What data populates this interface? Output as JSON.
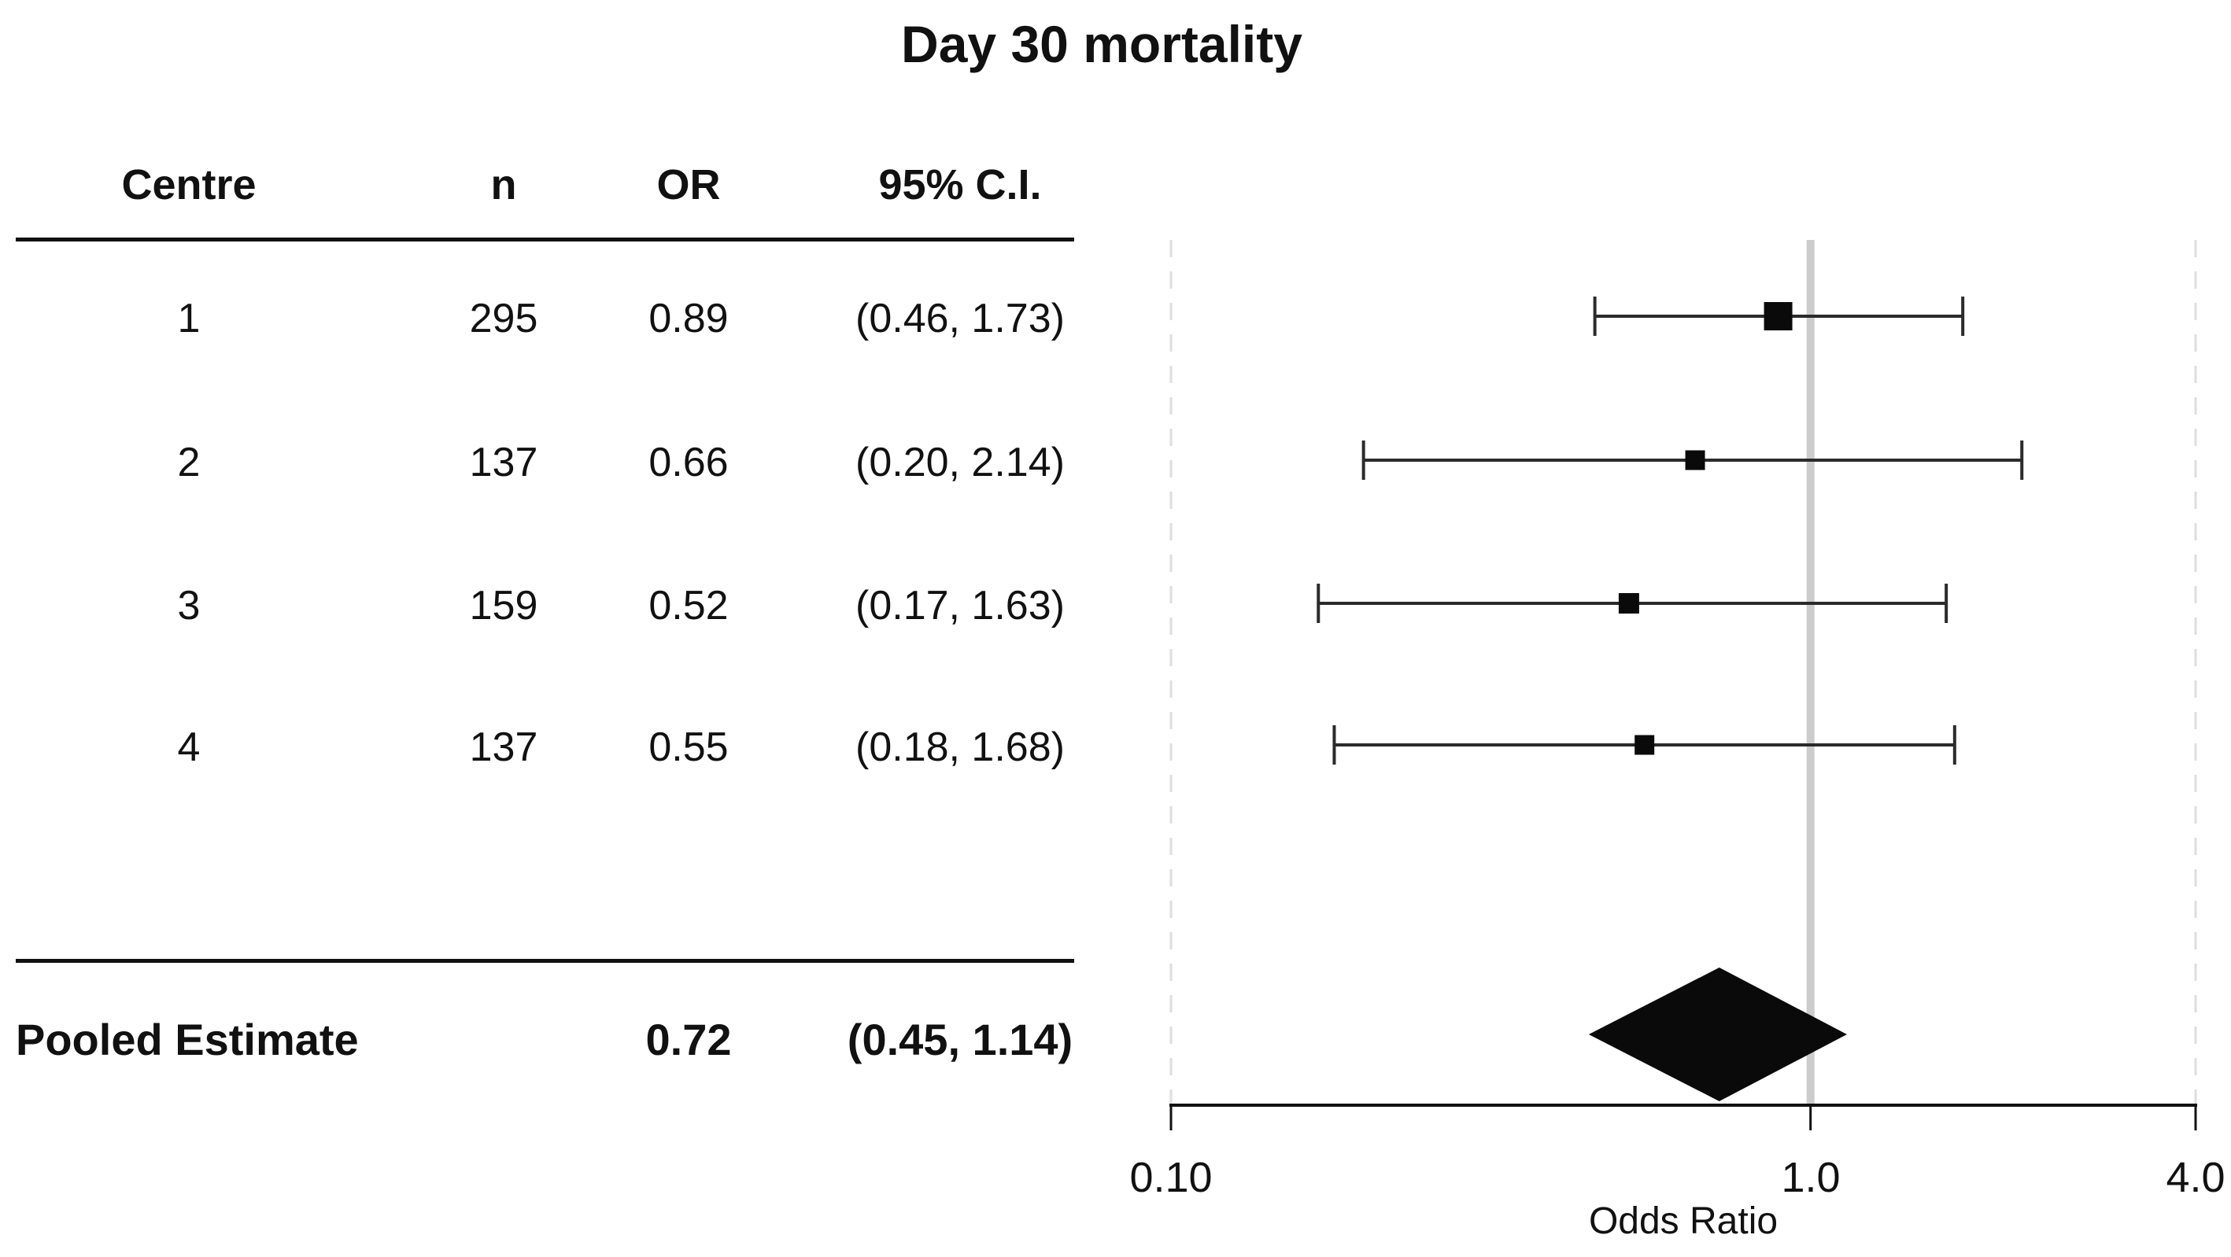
{
  "title": "Day 30 mortality",
  "table": {
    "headers": {
      "centre": "Centre",
      "n": "n",
      "or": "OR",
      "ci": "95% C.I."
    },
    "rows": [
      {
        "centre": "1",
        "n": "295",
        "or": "0.89",
        "ci": "(0.46, 1.73)"
      },
      {
        "centre": "2",
        "n": "137",
        "or": "0.66",
        "ci": "(0.20, 2.14)"
      },
      {
        "centre": "3",
        "n": "159",
        "or": "0.52",
        "ci": "(0.17, 1.63)"
      },
      {
        "centre": "4",
        "n": "137",
        "or": "0.55",
        "ci": "(0.18, 1.68)"
      }
    ],
    "pooled": {
      "label": "Pooled Estimate",
      "or": "0.72",
      "ci": "(0.45, 1.14)"
    }
  },
  "chart_data": {
    "type": "scatter",
    "variant": "forest-plot",
    "title": "Day 30 mortality",
    "xlabel": "Odds Ratio",
    "xscale": "log",
    "xlim": [
      0.1,
      4.0
    ],
    "xticks": [
      0.1,
      1.0,
      4.0
    ],
    "xtick_labels": [
      "0.10",
      "1.0",
      "4.0"
    ],
    "reference_line": 1.0,
    "studies": [
      {
        "label": "1",
        "n": 295,
        "or": 0.89,
        "ci_low": 0.46,
        "ci_high": 1.73
      },
      {
        "label": "2",
        "n": 137,
        "or": 0.66,
        "ci_low": 0.2,
        "ci_high": 2.14
      },
      {
        "label": "3",
        "n": 159,
        "or": 0.52,
        "ci_low": 0.17,
        "ci_high": 1.63
      },
      {
        "label": "4",
        "n": 137,
        "or": 0.55,
        "ci_low": 0.18,
        "ci_high": 1.68
      }
    ],
    "pooled": {
      "label": "Pooled Estimate",
      "or": 0.72,
      "ci_low": 0.45,
      "ci_high": 1.14
    },
    "colors": {
      "ink": "#111111",
      "whisker": "#2b2b2b",
      "marker": "#0a0a0a",
      "reference_line": "#cccccc",
      "edge_guides": "#dedede"
    },
    "legend": null,
    "grid": false
  }
}
